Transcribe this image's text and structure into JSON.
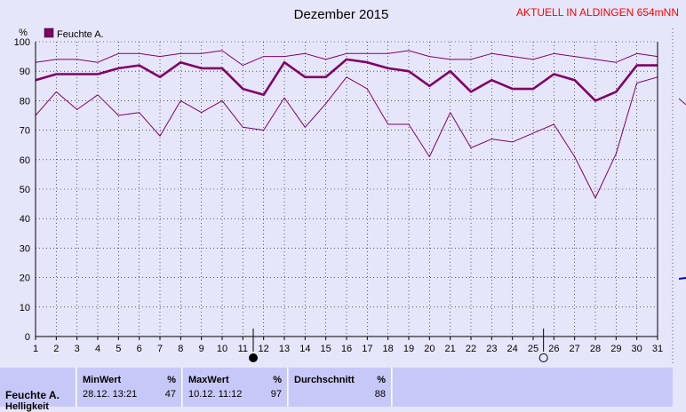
{
  "header": {
    "title": "Dezember 2015",
    "station": "AKTUELL IN ALDINGEN 654mNN"
  },
  "colors": {
    "background": "#e6e6fa",
    "plot": "#e6e6fa",
    "series": "#800066",
    "station": "#ff0000",
    "stats_bg": "#c8c8f8"
  },
  "chart_data": {
    "type": "line",
    "title": "Dezember 2015",
    "ylabel": "%",
    "xlabel": "",
    "ylim": [
      0,
      100
    ],
    "yticks": [
      0,
      10,
      20,
      30,
      40,
      50,
      60,
      70,
      80,
      90,
      100
    ],
    "x": [
      1,
      2,
      3,
      4,
      5,
      6,
      7,
      8,
      9,
      10,
      11,
      12,
      13,
      14,
      15,
      16,
      17,
      18,
      19,
      20,
      21,
      22,
      23,
      24,
      25,
      26,
      27,
      28,
      29,
      30,
      31
    ],
    "grid": true,
    "legend": {
      "label": "Feuchte A.",
      "position": "top-left"
    },
    "series": [
      {
        "name": "Feuchte A.",
        "role": "max",
        "values": [
          93,
          94,
          94,
          93,
          96,
          96,
          95,
          96,
          96,
          97,
          92,
          95,
          95,
          96,
          94,
          96,
          96,
          96,
          97,
          95,
          94,
          94,
          96,
          95,
          94,
          96,
          95,
          94,
          93,
          96,
          95
        ]
      },
      {
        "name": "Feuchte A.",
        "role": "mean",
        "values": [
          87,
          89,
          89,
          89,
          91,
          92,
          88,
          93,
          91,
          91,
          84,
          82,
          93,
          88,
          88,
          94,
          93,
          91,
          90,
          85,
          90,
          83,
          87,
          84,
          84,
          89,
          87,
          80,
          83,
          92,
          92
        ]
      },
      {
        "name": "Feuchte A.",
        "role": "min",
        "values": [
          75,
          83,
          77,
          82,
          75,
          76,
          68,
          80,
          76,
          80,
          71,
          70,
          81,
          71,
          79,
          88,
          84,
          72,
          72,
          61,
          76,
          64,
          67,
          66,
          69,
          72,
          61,
          47,
          62,
          86,
          88
        ]
      }
    ],
    "markers": [
      {
        "type": "new-moon",
        "day": 11.5
      },
      {
        "type": "full-moon",
        "day": 25.5
      }
    ]
  },
  "stats": {
    "series_name": "Feuchte A.",
    "second_label": "Helligkeit",
    "min": {
      "header": "MinWert",
      "unit": "%",
      "date": "28.12.",
      "time": "13:21",
      "value": "47"
    },
    "max": {
      "header": "MaxWert",
      "unit": "%",
      "date": "10.12.",
      "time": "11:12",
      "value": "97"
    },
    "avg": {
      "header": "Durchschnitt",
      "unit": "%",
      "value": "88"
    }
  }
}
